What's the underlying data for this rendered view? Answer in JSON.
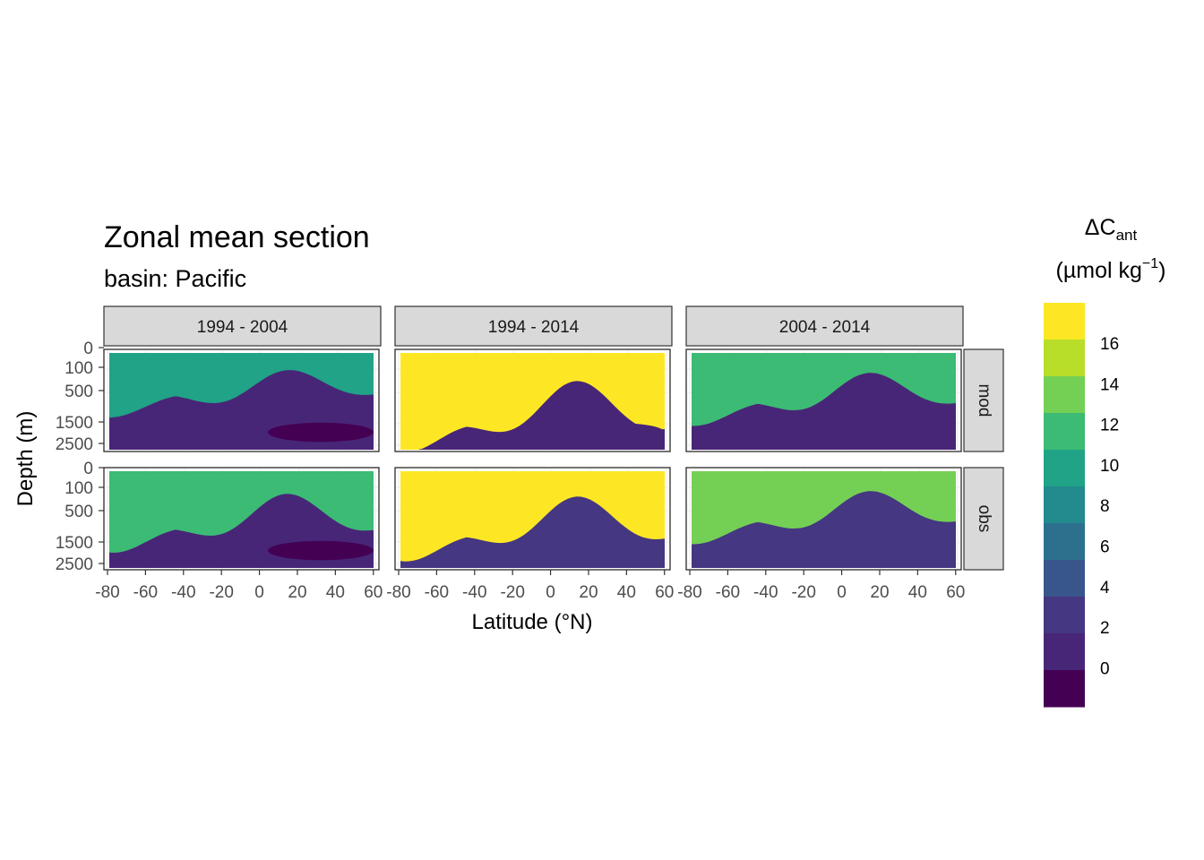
{
  "chart_data": {
    "type": "heatmap",
    "title": "Zonal mean section",
    "subtitle": "basin: Pacific",
    "xlabel": "Latitude (°N)",
    "ylabel": "Depth (m)",
    "legend": {
      "title_main": "ΔC",
      "title_sub": "ant",
      "title_units_pre": "(µmol kg",
      "title_units_sup": "−1",
      "title_units_post": ")",
      "position": "right",
      "breaks": [
        "16",
        "14",
        "12",
        "10",
        "8",
        "6",
        "4",
        "2",
        "0"
      ],
      "colors": [
        "#FDE725",
        "#B8DE29",
        "#74D055",
        "#3CBB75",
        "#20A386",
        "#238A8D",
        "#2D708E",
        "#39568C",
        "#453781",
        "#482677",
        "#440154"
      ]
    },
    "x_axis": {
      "range": [
        -80,
        62
      ],
      "ticks": [
        "-80",
        "-60",
        "-40",
        "-20",
        "0",
        "20",
        "40",
        "60"
      ]
    },
    "y_axis": {
      "range": [
        0,
        3000
      ],
      "reversed": true,
      "ticks": [
        "0",
        "100",
        "500",
        "1500",
        "2500"
      ]
    },
    "facet_cols": [
      "1994 - 2004",
      "1994 - 2014",
      "2004 - 2014"
    ],
    "facet_rows": [
      "mod",
      "obs"
    ],
    "grid": true,
    "panels": [
      {
        "col": 0,
        "row": 0,
        "surface_max": 9,
        "deep_min": -1
      },
      {
        "col": 1,
        "row": 0,
        "surface_max": 18,
        "deep_min": 0
      },
      {
        "col": 2,
        "row": 0,
        "surface_max": 11,
        "deep_min": 0
      },
      {
        "col": 0,
        "row": 1,
        "surface_max": 12,
        "deep_min": -1
      },
      {
        "col": 1,
        "row": 1,
        "surface_max": 18,
        "deep_min": 2
      },
      {
        "col": 2,
        "row": 1,
        "surface_max": 14,
        "deep_min": 2
      }
    ]
  }
}
